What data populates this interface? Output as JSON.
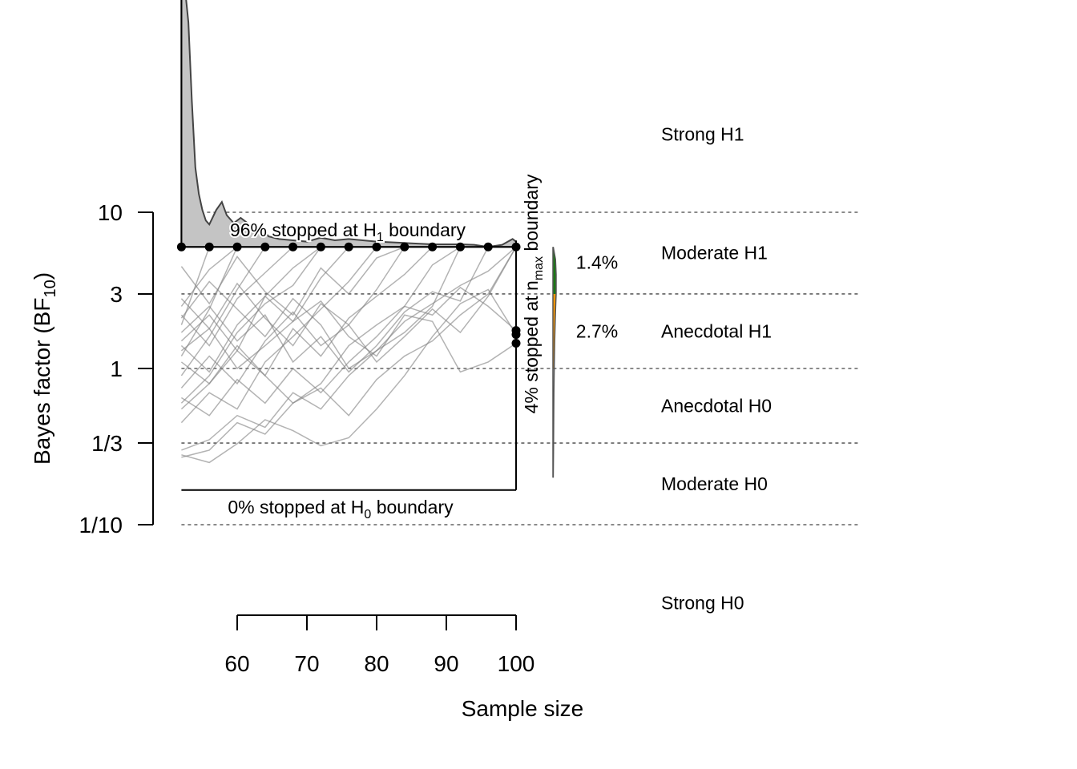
{
  "chart_data": {
    "type": "line",
    "title": "",
    "xlabel": "Sample size",
    "ylabel": "Bayes factor (BF",
    "ylabel_sub": "10",
    "ylabel_close": ")",
    "xlim": [
      52,
      100
    ],
    "y_scale": "log10",
    "ylim": [
      0.1,
      10
    ],
    "x_ticks": [
      60,
      70,
      80,
      90,
      100
    ],
    "x_tick_labels": [
      "60",
      "70",
      "80",
      "90",
      "100"
    ],
    "y_ticks": [
      10,
      3,
      1,
      0.3333,
      0.1
    ],
    "y_tick_labels": [
      "10",
      "3",
      "1",
      "1/3",
      "1/10"
    ],
    "grid_lines_dotted": [
      10,
      3,
      1,
      0.3333,
      0.1
    ],
    "boundaries": {
      "H1": 6,
      "H0": 0.1667,
      "n_min": 52,
      "n_max": 100
    },
    "check_x": [
      52,
      56,
      60,
      64,
      68,
      72,
      76,
      80,
      84,
      88,
      92,
      96,
      100
    ],
    "trajectories": [
      [
        6
      ],
      [
        1.9,
        6
      ],
      [
        1.2,
        2.4,
        6
      ],
      [
        0.9,
        1.6,
        3.2,
        6
      ],
      [
        2.2,
        1.4,
        2.8,
        4.1,
        6
      ],
      [
        0.6,
        0.9,
        1.7,
        2.6,
        3.4,
        6
      ],
      [
        1.5,
        2.2,
        1.3,
        2.9,
        2.0,
        3.8,
        6
      ],
      [
        0.45,
        0.7,
        0.55,
        1.1,
        1.6,
        2.4,
        3.6,
        6
      ],
      [
        2.8,
        1.8,
        3.5,
        2.1,
        1.4,
        2.6,
        1.9,
        3.2,
        6
      ],
      [
        1.1,
        0.8,
        1.4,
        0.9,
        1.8,
        1.2,
        2.1,
        2.9,
        4.0,
        6
      ],
      [
        0.3,
        0.35,
        0.5,
        0.42,
        0.7,
        0.55,
        0.9,
        1.3,
        1.7,
        2.5,
        6
      ],
      [
        1.7,
        2.5,
        1.5,
        2.2,
        1.1,
        1.6,
        0.95,
        1.4,
        2.3,
        3.1,
        2.7,
        6
      ],
      [
        0.27,
        0.3,
        0.45,
        0.38,
        0.6,
        0.75,
        0.5,
        0.85,
        1.2,
        1.5,
        2.2,
        3.0,
        6
      ],
      [
        2.1,
        3.6,
        2.4,
        1.6,
        2.8,
        1.9,
        1.0,
        1.3,
        2.0,
        2.6,
        3.4,
        4.2,
        6
      ],
      [
        0.75,
        1.2,
        0.8,
        1.5,
        2.3,
        1.4,
        1.9,
        1.1,
        1.6,
        2.4,
        1.7,
        2.9,
        6
      ],
      [
        0.28,
        0.25,
        0.33,
        0.47,
        0.4,
        0.32,
        0.36,
        0.55,
        0.9,
        1.6,
        2.6,
        3.2,
        1.65
      ],
      [
        1.3,
        1.8,
        1.0,
        1.4,
        2.0,
        2.7,
        1.6,
        1.2,
        2.2,
        2.0,
        0.95,
        1.1,
        1.45
      ],
      [
        0.55,
        0.8,
        1.3,
        0.9,
        0.6,
        0.8,
        1.4,
        1.9,
        2.5,
        2.2,
        3.3,
        2.5,
        1.75
      ],
      [
        4.5,
        2.6,
        5.2,
        3.1,
        2.2,
        4.4,
        3.0,
        5.1,
        6
      ],
      [
        2.5,
        4.3,
        6
      ],
      [
        1.4,
        0.95,
        1.9,
        2.9,
        4.4,
        6
      ],
      [
        0.65,
        0.5,
        0.85,
        0.6,
        1.0,
        0.7,
        1.1,
        1.6,
        2.5,
        4.6,
        6
      ]
    ],
    "h1_stop_density": {
      "x": [
        52,
        52.5,
        53,
        53.5,
        54,
        54.5,
        55,
        55.5,
        56,
        57,
        57.8,
        58.5,
        59.5,
        60.5,
        61.5,
        62.5,
        63.5,
        64.5,
        66,
        68,
        70,
        72,
        74,
        76,
        80,
        84,
        88,
        92,
        94,
        96,
        98,
        99.5,
        100
      ],
      "density": [
        1.0,
        0.98,
        0.85,
        0.55,
        0.3,
        0.2,
        0.14,
        0.1,
        0.085,
        0.14,
        0.17,
        0.12,
        0.09,
        0.11,
        0.09,
        0.06,
        0.07,
        0.04,
        0.03,
        0.025,
        0.02,
        0.035,
        0.025,
        0.03,
        0.02,
        0.015,
        0.01,
        0.01,
        0.008,
        0.0,
        0.008,
        0.03,
        0.02
      ]
    },
    "annotations": {
      "h1_stop": {
        "prefix": "96% stopped at H",
        "sub": "1",
        "suffix": " boundary"
      },
      "h0_stop": {
        "prefix": "0% stopped at H",
        "sub": "0",
        "suffix": " boundary"
      },
      "nmax_stop": {
        "prefix": "4% stopped at n",
        "sub": "max",
        "suffix": " boundary"
      }
    },
    "final_bf_density": {
      "bf": [
        6,
        5,
        4,
        3,
        2.5,
        2,
        1.5,
        1,
        0.7,
        0.5,
        0.35,
        0.3,
        0.2
      ],
      "width": [
        0.1,
        0.8,
        1,
        1,
        0.85,
        0.7,
        0.55,
        0.4,
        0.3,
        0.25,
        0.2,
        0.18,
        0.1
      ],
      "regions": [
        {
          "from": 3,
          "to": 6,
          "color": "#1a7a14",
          "label": "1.4%"
        },
        {
          "from": 1,
          "to": 3,
          "color": "#ff9a00",
          "label": "2.7%"
        }
      ]
    },
    "evidence_labels": [
      {
        "label": "Strong H1",
        "at": 31.6
      },
      {
        "label": "Moderate H1",
        "at": 5.5
      },
      {
        "label": "Anecdotal H1",
        "at": 1.73
      },
      {
        "label": "Anecdotal H0",
        "at": 0.577
      },
      {
        "label": "Moderate H0",
        "at": 0.183
      },
      {
        "label": "Strong H0",
        "at": 0.0316
      }
    ],
    "colors": {
      "trajectory": "#808080",
      "density_fill": "#c4c4c4",
      "density_line": "#444444"
    }
  }
}
